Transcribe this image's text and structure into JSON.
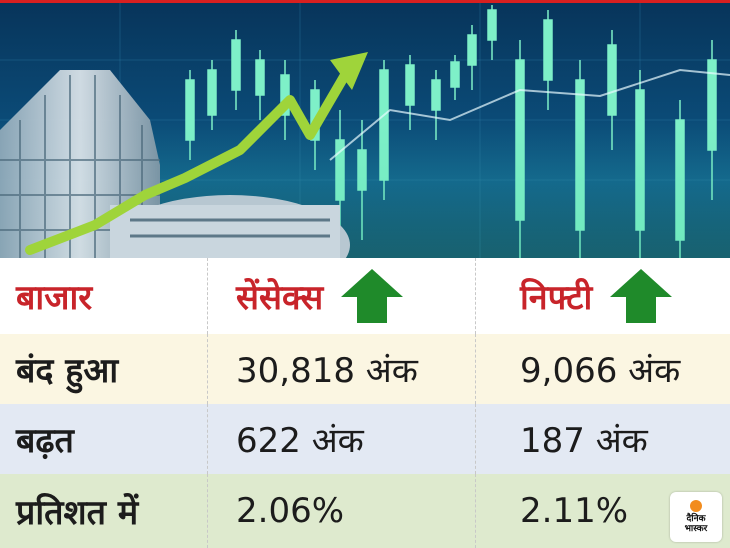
{
  "header": {
    "col1": "बाजार",
    "col2": "सेंसेक्स",
    "col3": "निफ्टी",
    "col2_trend_icon": "up-arrow-icon",
    "col3_trend_icon": "up-arrow-icon"
  },
  "rows": [
    {
      "label": "बंद हुआ",
      "sensex": "30,818 अंक",
      "nifty": "9,066 अंक"
    },
    {
      "label": "बढ़त",
      "sensex": "622 अंक",
      "nifty": "187 अंक"
    },
    {
      "label": "प्रतिशत में",
      "sensex": "2.06%",
      "nifty": "2.11%"
    }
  ],
  "logo": {
    "line1": "दैनिक",
    "line2": "भास्कर"
  },
  "colors": {
    "header_text": "#c8242a",
    "up_arrow": "#1f8a2a",
    "row1_bg": "#fbf6e2",
    "row2_bg": "#e3e9f3",
    "row3_bg": "#deeace",
    "hero_bg": "#0b4a76",
    "trend_line": "#a8d43a"
  }
}
